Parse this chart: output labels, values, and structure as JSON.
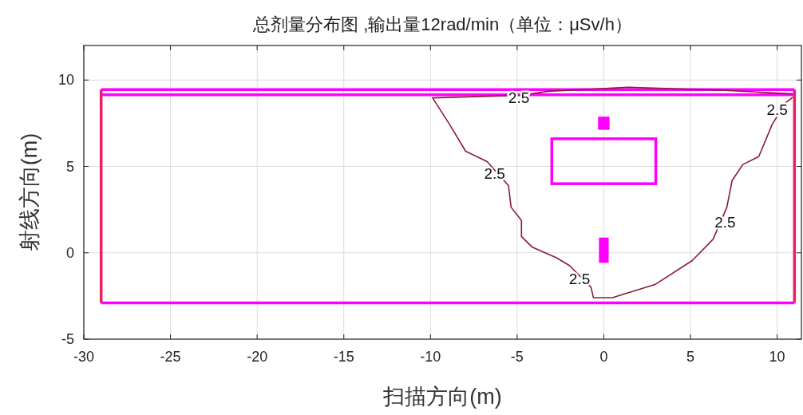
{
  "chart_data": {
    "type": "line",
    "title": "总剂量分布图 ,输出量12rad/min（单位：μSv/h）",
    "xlabel": "扫描方向(m)",
    "ylabel": "射线方向(m)",
    "xlim": [
      -30,
      11.4
    ],
    "ylim": [
      -5,
      12
    ],
    "xticks": [
      -30,
      -25,
      -20,
      -15,
      -10,
      -5,
      0,
      5,
      10
    ],
    "yticks": [
      -5,
      0,
      5,
      10
    ],
    "grid": true,
    "marker": "none",
    "line_style": "solid",
    "series": [
      {
        "color": "#ee1c5a",
        "x": [
          -29,
          -29
        ],
        "values": [
          -2.9,
          9.45
        ]
      },
      {
        "color": "#ee1c5a",
        "x": [
          11,
          11
        ],
        "values": [
          -2.9,
          9.45
        ]
      },
      {
        "color": "#ff00ff",
        "x": [
          -29,
          11
        ],
        "values": [
          9.45,
          9.45
        ]
      },
      {
        "color": "#ff00ff",
        "x": [
          -29,
          11
        ],
        "values": [
          9.15,
          9.15
        ]
      },
      {
        "color": "#ff00ff",
        "x": [
          -29,
          11
        ],
        "values": [
          -2.9,
          -2.9
        ]
      },
      {
        "color": "#8b1a3a",
        "x": [
          10.9,
          7,
          1.4,
          -3.2,
          -4.75,
          -9.88,
          -8.89,
          -7.97,
          -6.73,
          -5.5,
          -5.35,
          -4.75,
          -4.75,
          -4.12,
          -2.73,
          -1.98,
          -0.74,
          -0.6,
          0.49,
          2.95,
          5.1,
          6.31,
          7.1,
          7.4,
          8.02,
          8.94,
          9.71,
          10.46,
          10.9
        ],
        "values": [
          9.2,
          9.4,
          9.58,
          9.35,
          9.12,
          8.97,
          7.42,
          5.88,
          5.28,
          3.89,
          2.64,
          1.87,
          0.94,
          0.32,
          -0.29,
          -0.74,
          -1.99,
          -2.59,
          -2.6,
          -1.84,
          -0.45,
          0.79,
          2.64,
          4.18,
          5.11,
          5.57,
          7.42,
          8.66,
          9.0
        ]
      }
    ],
    "annotations": [
      {
        "text": "2.5",
        "x": -4.9,
        "y": 9.0
      },
      {
        "text": "2.5",
        "x": -6.3,
        "y": 4.6
      },
      {
        "text": "2.5",
        "x": -1.4,
        "y": -1.5
      },
      {
        "text": "2.5",
        "x": 7.0,
        "y": 1.8
      },
      {
        "text": "2.5",
        "x": 10.0,
        "y": 8.3
      }
    ]
  }
}
